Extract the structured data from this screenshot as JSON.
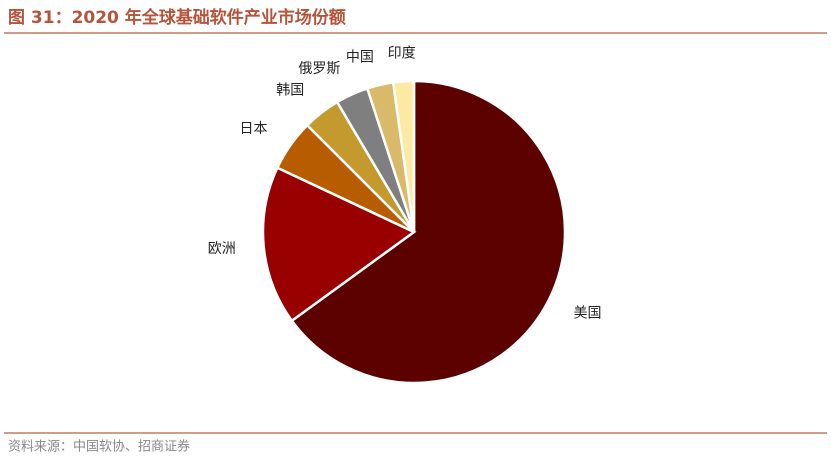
{
  "chart_data": {
    "type": "pie",
    "title": "图 31：2020 年全球基础软件产业市场份额",
    "source": "资料来源：中国软协、招商证券",
    "categories": [
      "美国",
      "欧洲",
      "日本",
      "韩国",
      "俄罗斯",
      "中国",
      "印度"
    ],
    "values": [
      65,
      17,
      5.5,
      4,
      3.5,
      2.8,
      2.2
    ],
    "colors": [
      "#5c0000",
      "#990000",
      "#b85c00",
      "#c49a2e",
      "#7f7f7f",
      "#d9b96a",
      "#fce9a4"
    ]
  }
}
